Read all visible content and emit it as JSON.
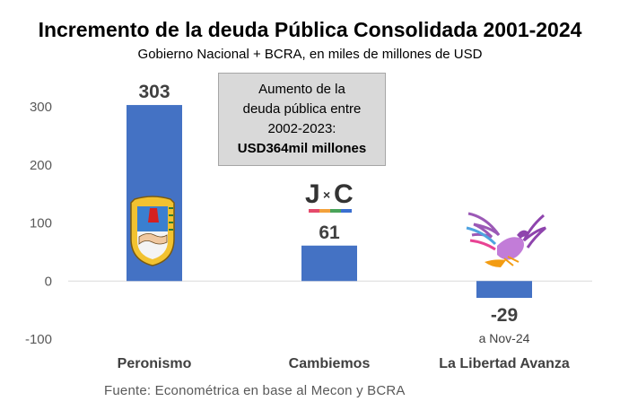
{
  "chart_data": {
    "type": "bar",
    "title": "Incremento de la deuda Pública Consolidada 2001-2024",
    "subtitle": "Gobierno Nacional + BCRA, en miles de millones de USD",
    "categories": [
      "Peronismo",
      "Cambiemos",
      "La Libertad Avanza"
    ],
    "values": [
      303,
      61,
      -29
    ],
    "data_labels": [
      "303",
      "61",
      "-29"
    ],
    "yticks": [
      "300",
      "200",
      "100",
      "0",
      "-100"
    ],
    "ylim": [
      -100,
      300
    ],
    "grid": false,
    "bar_color": "#4472c4",
    "annotation": {
      "lines": [
        "Aumento de la",
        "deuda pública entre",
        "2002-2023:"
      ],
      "emphasis": "USD364mil millones"
    },
    "bar_notes": [
      "",
      "",
      "a Nov-24"
    ],
    "logos": [
      "peronist-shield-logo",
      "jxc-logo",
      "libertad-avanza-eagle-logo"
    ],
    "source": "Fuente: Econométrica en base al Mecon y BCRA"
  }
}
